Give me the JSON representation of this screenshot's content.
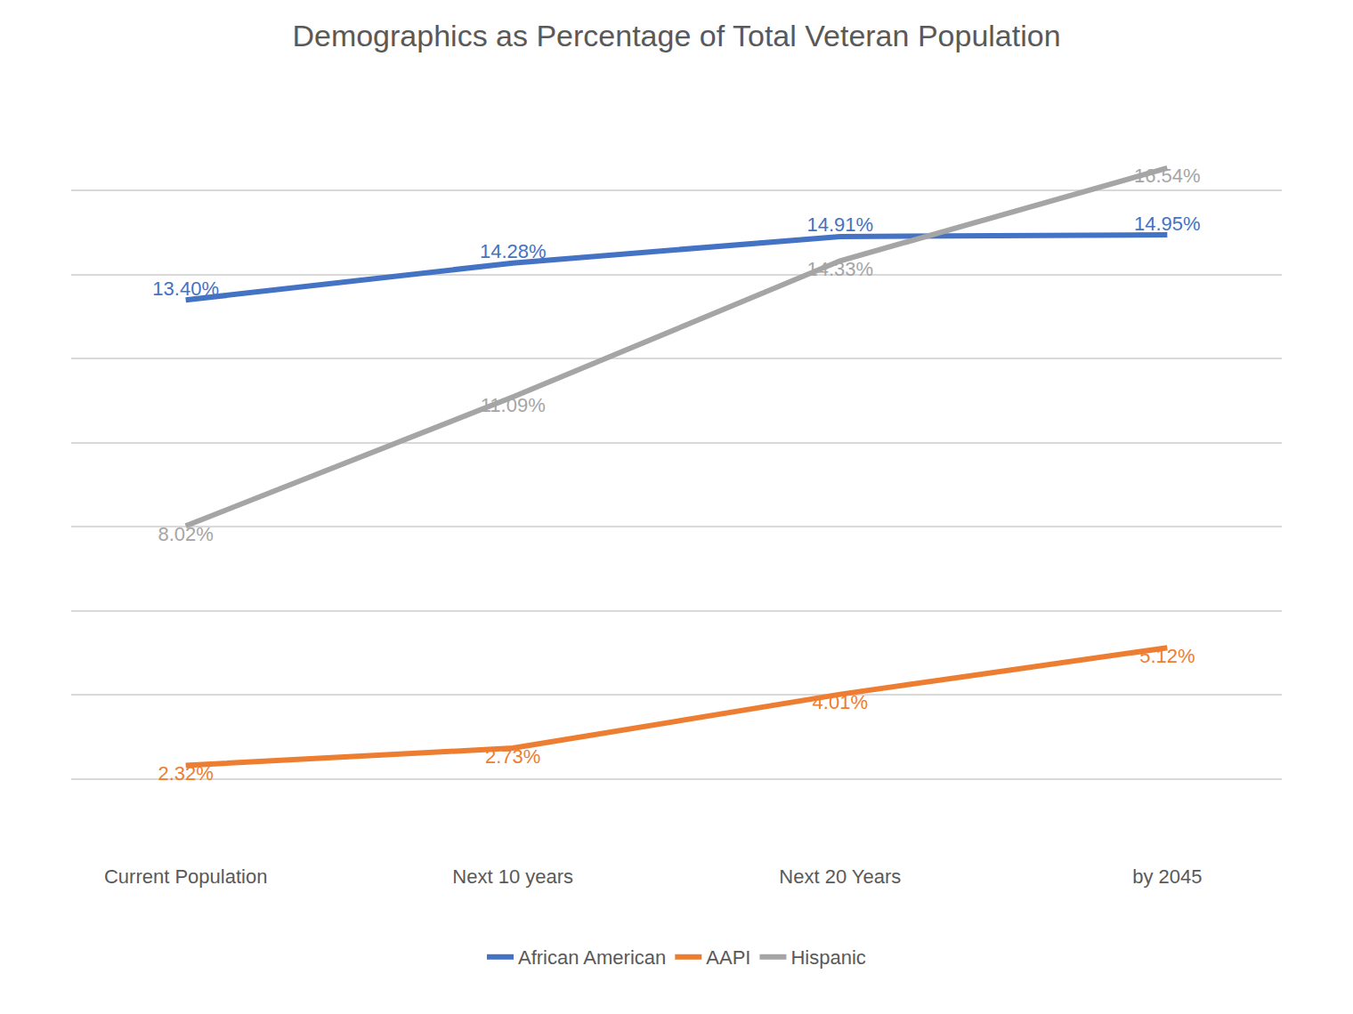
{
  "chart_data": {
    "type": "line",
    "title": "Demographics as Percentage of Total Veteran Population",
    "categories": [
      "Current Population",
      "Next 10 years",
      "Next 20 Years",
      "by 2045"
    ],
    "series": [
      {
        "name": "African American",
        "color": "#4472c4",
        "values": [
          13.4,
          14.28,
          14.91,
          14.95
        ],
        "value_labels": [
          "13.40%",
          "14.28%",
          "14.91%",
          "14.95%"
        ]
      },
      {
        "name": "AAPI",
        "color": "#ed7d31",
        "values": [
          2.32,
          2.73,
          4.01,
          5.12
        ],
        "value_labels": [
          "2.32%",
          "2.73%",
          "4.01%",
          "5.12%"
        ]
      },
      {
        "name": "Hispanic",
        "color": "#a5a5a5",
        "values": [
          8.02,
          11.09,
          14.33,
          16.54
        ],
        "value_labels": [
          "8.02%",
          "11.09%",
          "14.33%",
          "16.54%"
        ]
      }
    ],
    "ylim": [
      0,
      18
    ],
    "yticks": [
      0,
      2,
      4,
      6,
      8,
      10,
      12,
      14,
      16,
      18
    ],
    "grid": true,
    "legend": "bottom",
    "data_labels": true,
    "tick_labels": "x"
  }
}
